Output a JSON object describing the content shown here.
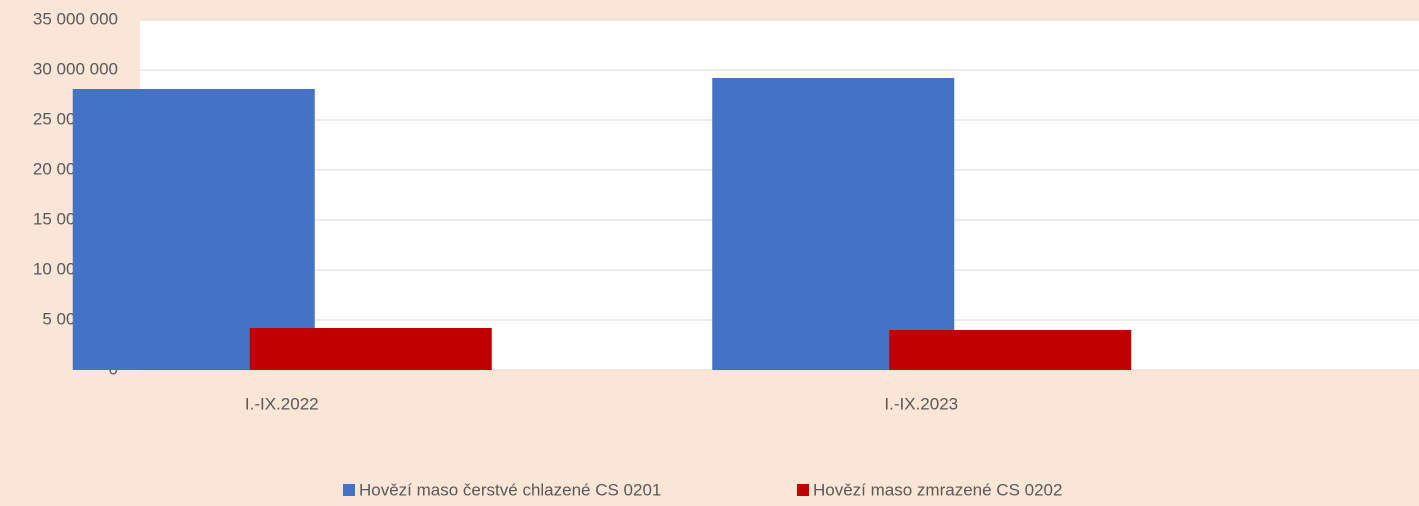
{
  "chart_data": {
    "type": "bar",
    "categories": [
      "I.-IX.2022",
      "I.-IX.2023"
    ],
    "series": [
      {
        "name": "Hovězí maso čerstvé chlazené CS 0201",
        "color": "#4472c4",
        "values": [
          28100000,
          29200000
        ]
      },
      {
        "name": "Hovězí maso zmrazené CS 0202",
        "color": "#c00000",
        "values": [
          4200000,
          4000000
        ]
      }
    ],
    "ylim": [
      0,
      35000000
    ],
    "yticks": [
      0,
      {
        "value": 5000000,
        "label": "5 000 000"
      },
      {
        "value": 10000000,
        "label": "10 000 000"
      },
      {
        "value": 15000000,
        "label": "15 000 000"
      },
      {
        "value": 20000000,
        "label": "20 000 000"
      },
      {
        "value": 25000000,
        "label": "25 000 000"
      },
      {
        "value": 30000000,
        "label": "30 000 000"
      },
      {
        "value": 35000000,
        "label": "35 000 000"
      }
    ],
    "grid": true,
    "legend": "bottom"
  }
}
